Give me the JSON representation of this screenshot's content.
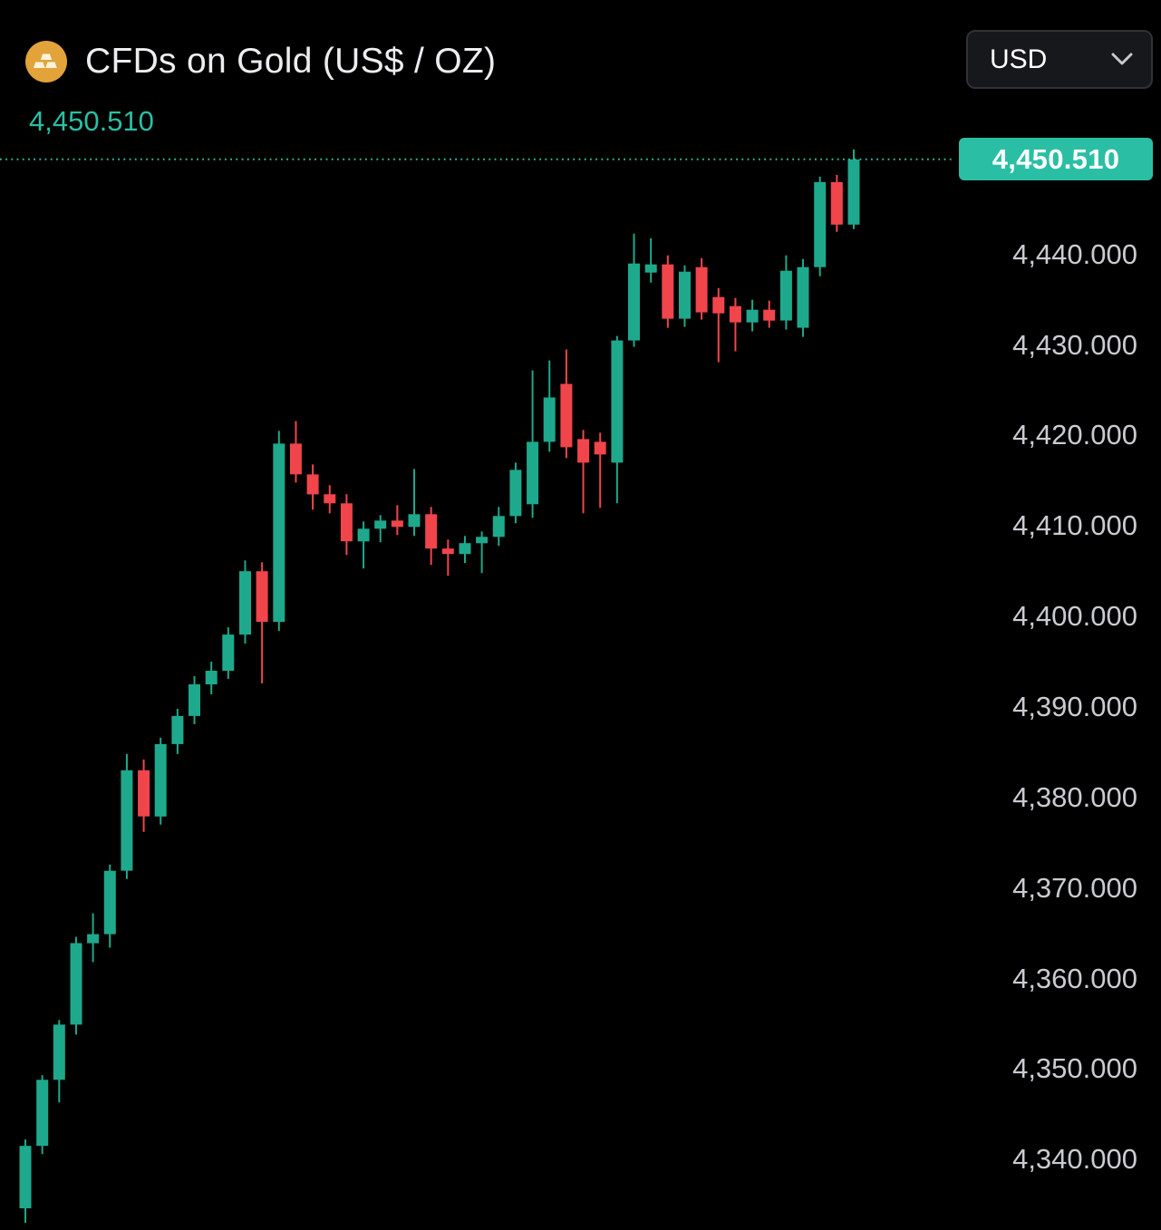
{
  "header": {
    "title": "CFDs on Gold (US$ / OZ)",
    "price": "4,450.510",
    "symbol_icon": "gold-bars-icon"
  },
  "currency_selector": {
    "value": "USD",
    "icon": "chevron-down-icon"
  },
  "price_axis": {
    "current_price_label": "4,450.510"
  },
  "colors": {
    "background": "#000000",
    "accent": "#2abfa4",
    "up": "#1ea98c",
    "down": "#f0454b",
    "axis_text": "#c9cbd1",
    "title_text": "#ededef",
    "gold_bg": "#e2a33b",
    "gold_glyph": "#fdf3dc"
  },
  "chart_data": {
    "type": "candlestick",
    "title": "CFDs on Gold (US$ / OZ)",
    "currency": "USD",
    "current_price": 4450.51,
    "ylim": [
      4330.5,
      4455.0
    ],
    "grid": false,
    "y_ticks": [
      {
        "value": 4440,
        "label": "4,440.000"
      },
      {
        "value": 4430,
        "label": "4,430.000"
      },
      {
        "value": 4420,
        "label": "4,420.000"
      },
      {
        "value": 4410,
        "label": "4,410.000"
      },
      {
        "value": 4400,
        "label": "4,400.000"
      },
      {
        "value": 4390,
        "label": "4,390.000"
      },
      {
        "value": 4380,
        "label": "4,380.000"
      },
      {
        "value": 4370,
        "label": "4,370.000"
      },
      {
        "value": 4360,
        "label": "4,360.000"
      },
      {
        "value": 4350,
        "label": "4,350.000"
      },
      {
        "value": 4340,
        "label": "4,340.000"
      }
    ],
    "candles": [
      [
        4334.6,
        4342.2,
        4333.0,
        4341.5
      ],
      [
        4341.5,
        4349.3,
        4340.6,
        4348.8
      ],
      [
        4348.8,
        4355.4,
        4346.3,
        4354.9
      ],
      [
        4354.9,
        4364.6,
        4353.8,
        4363.9
      ],
      [
        4363.9,
        4367.2,
        4361.8,
        4364.9
      ],
      [
        4364.9,
        4372.6,
        4363.4,
        4371.9
      ],
      [
        4371.9,
        4384.8,
        4371.0,
        4383.0
      ],
      [
        4383.0,
        4384.2,
        4376.2,
        4377.9
      ],
      [
        4377.9,
        4386.6,
        4377.0,
        4385.9
      ],
      [
        4385.9,
        4389.8,
        4384.8,
        4389.0
      ],
      [
        4389.0,
        4393.4,
        4388.1,
        4392.5
      ],
      [
        4392.5,
        4395.0,
        4391.4,
        4394.0
      ],
      [
        4394.0,
        4398.8,
        4393.1,
        4398.0
      ],
      [
        4398.0,
        4406.2,
        4397.0,
        4405.0
      ],
      [
        4405.0,
        4406.0,
        4392.6,
        4399.4
      ],
      [
        4399.4,
        4420.5,
        4398.4,
        4419.1
      ],
      [
        4419.1,
        4421.6,
        4414.8,
        4415.7
      ],
      [
        4415.7,
        4416.8,
        4411.8,
        4413.5
      ],
      [
        4413.5,
        4414.5,
        4411.4,
        4412.5
      ],
      [
        4412.5,
        4413.5,
        4406.8,
        4408.3
      ],
      [
        4408.3,
        4410.5,
        4405.3,
        4409.7
      ],
      [
        4409.7,
        4411.2,
        4408.2,
        4410.6
      ],
      [
        4410.6,
        4412.3,
        4409.0,
        4409.9
      ],
      [
        4409.9,
        4416.3,
        4408.9,
        4411.3
      ],
      [
        4411.3,
        4412.1,
        4405.7,
        4407.5
      ],
      [
        4407.5,
        4408.5,
        4404.5,
        4406.9
      ],
      [
        4406.9,
        4408.9,
        4405.9,
        4408.1
      ],
      [
        4408.1,
        4409.4,
        4404.8,
        4408.8
      ],
      [
        4408.8,
        4412.1,
        4407.8,
        4411.1
      ],
      [
        4411.1,
        4417.0,
        4410.3,
        4416.2
      ],
      [
        4412.4,
        4427.2,
        4410.9,
        4419.3
      ],
      [
        4419.3,
        4428.3,
        4418.2,
        4424.2
      ],
      [
        4425.7,
        4429.5,
        4417.5,
        4418.7
      ],
      [
        4419.6,
        4420.6,
        4411.4,
        4417.0
      ],
      [
        4419.3,
        4420.3,
        4412.0,
        4417.9
      ],
      [
        4417.0,
        4431.0,
        4412.5,
        4430.5
      ],
      [
        4430.5,
        4442.3,
        4429.8,
        4439.0
      ],
      [
        4438.0,
        4441.8,
        4436.9,
        4438.9
      ],
      [
        4438.9,
        4439.9,
        4431.9,
        4432.9
      ],
      [
        4432.9,
        4438.8,
        4432.0,
        4438.1
      ],
      [
        4438.6,
        4439.6,
        4432.8,
        4433.6
      ],
      [
        4435.3,
        4436.3,
        4428.1,
        4433.5
      ],
      [
        4434.3,
        4435.2,
        4429.3,
        4432.5
      ],
      [
        4432.5,
        4435.0,
        4431.5,
        4433.9
      ],
      [
        4433.9,
        4434.9,
        4431.9,
        4432.7
      ],
      [
        4432.7,
        4439.9,
        4431.7,
        4438.2
      ],
      [
        4431.9,
        4439.5,
        4430.9,
        4438.6
      ],
      [
        4438.6,
        4448.6,
        4437.6,
        4448.0
      ],
      [
        4448.0,
        4448.8,
        4442.5,
        4443.3
      ],
      [
        4443.3,
        4451.6,
        4442.8,
        4450.51
      ]
    ]
  }
}
